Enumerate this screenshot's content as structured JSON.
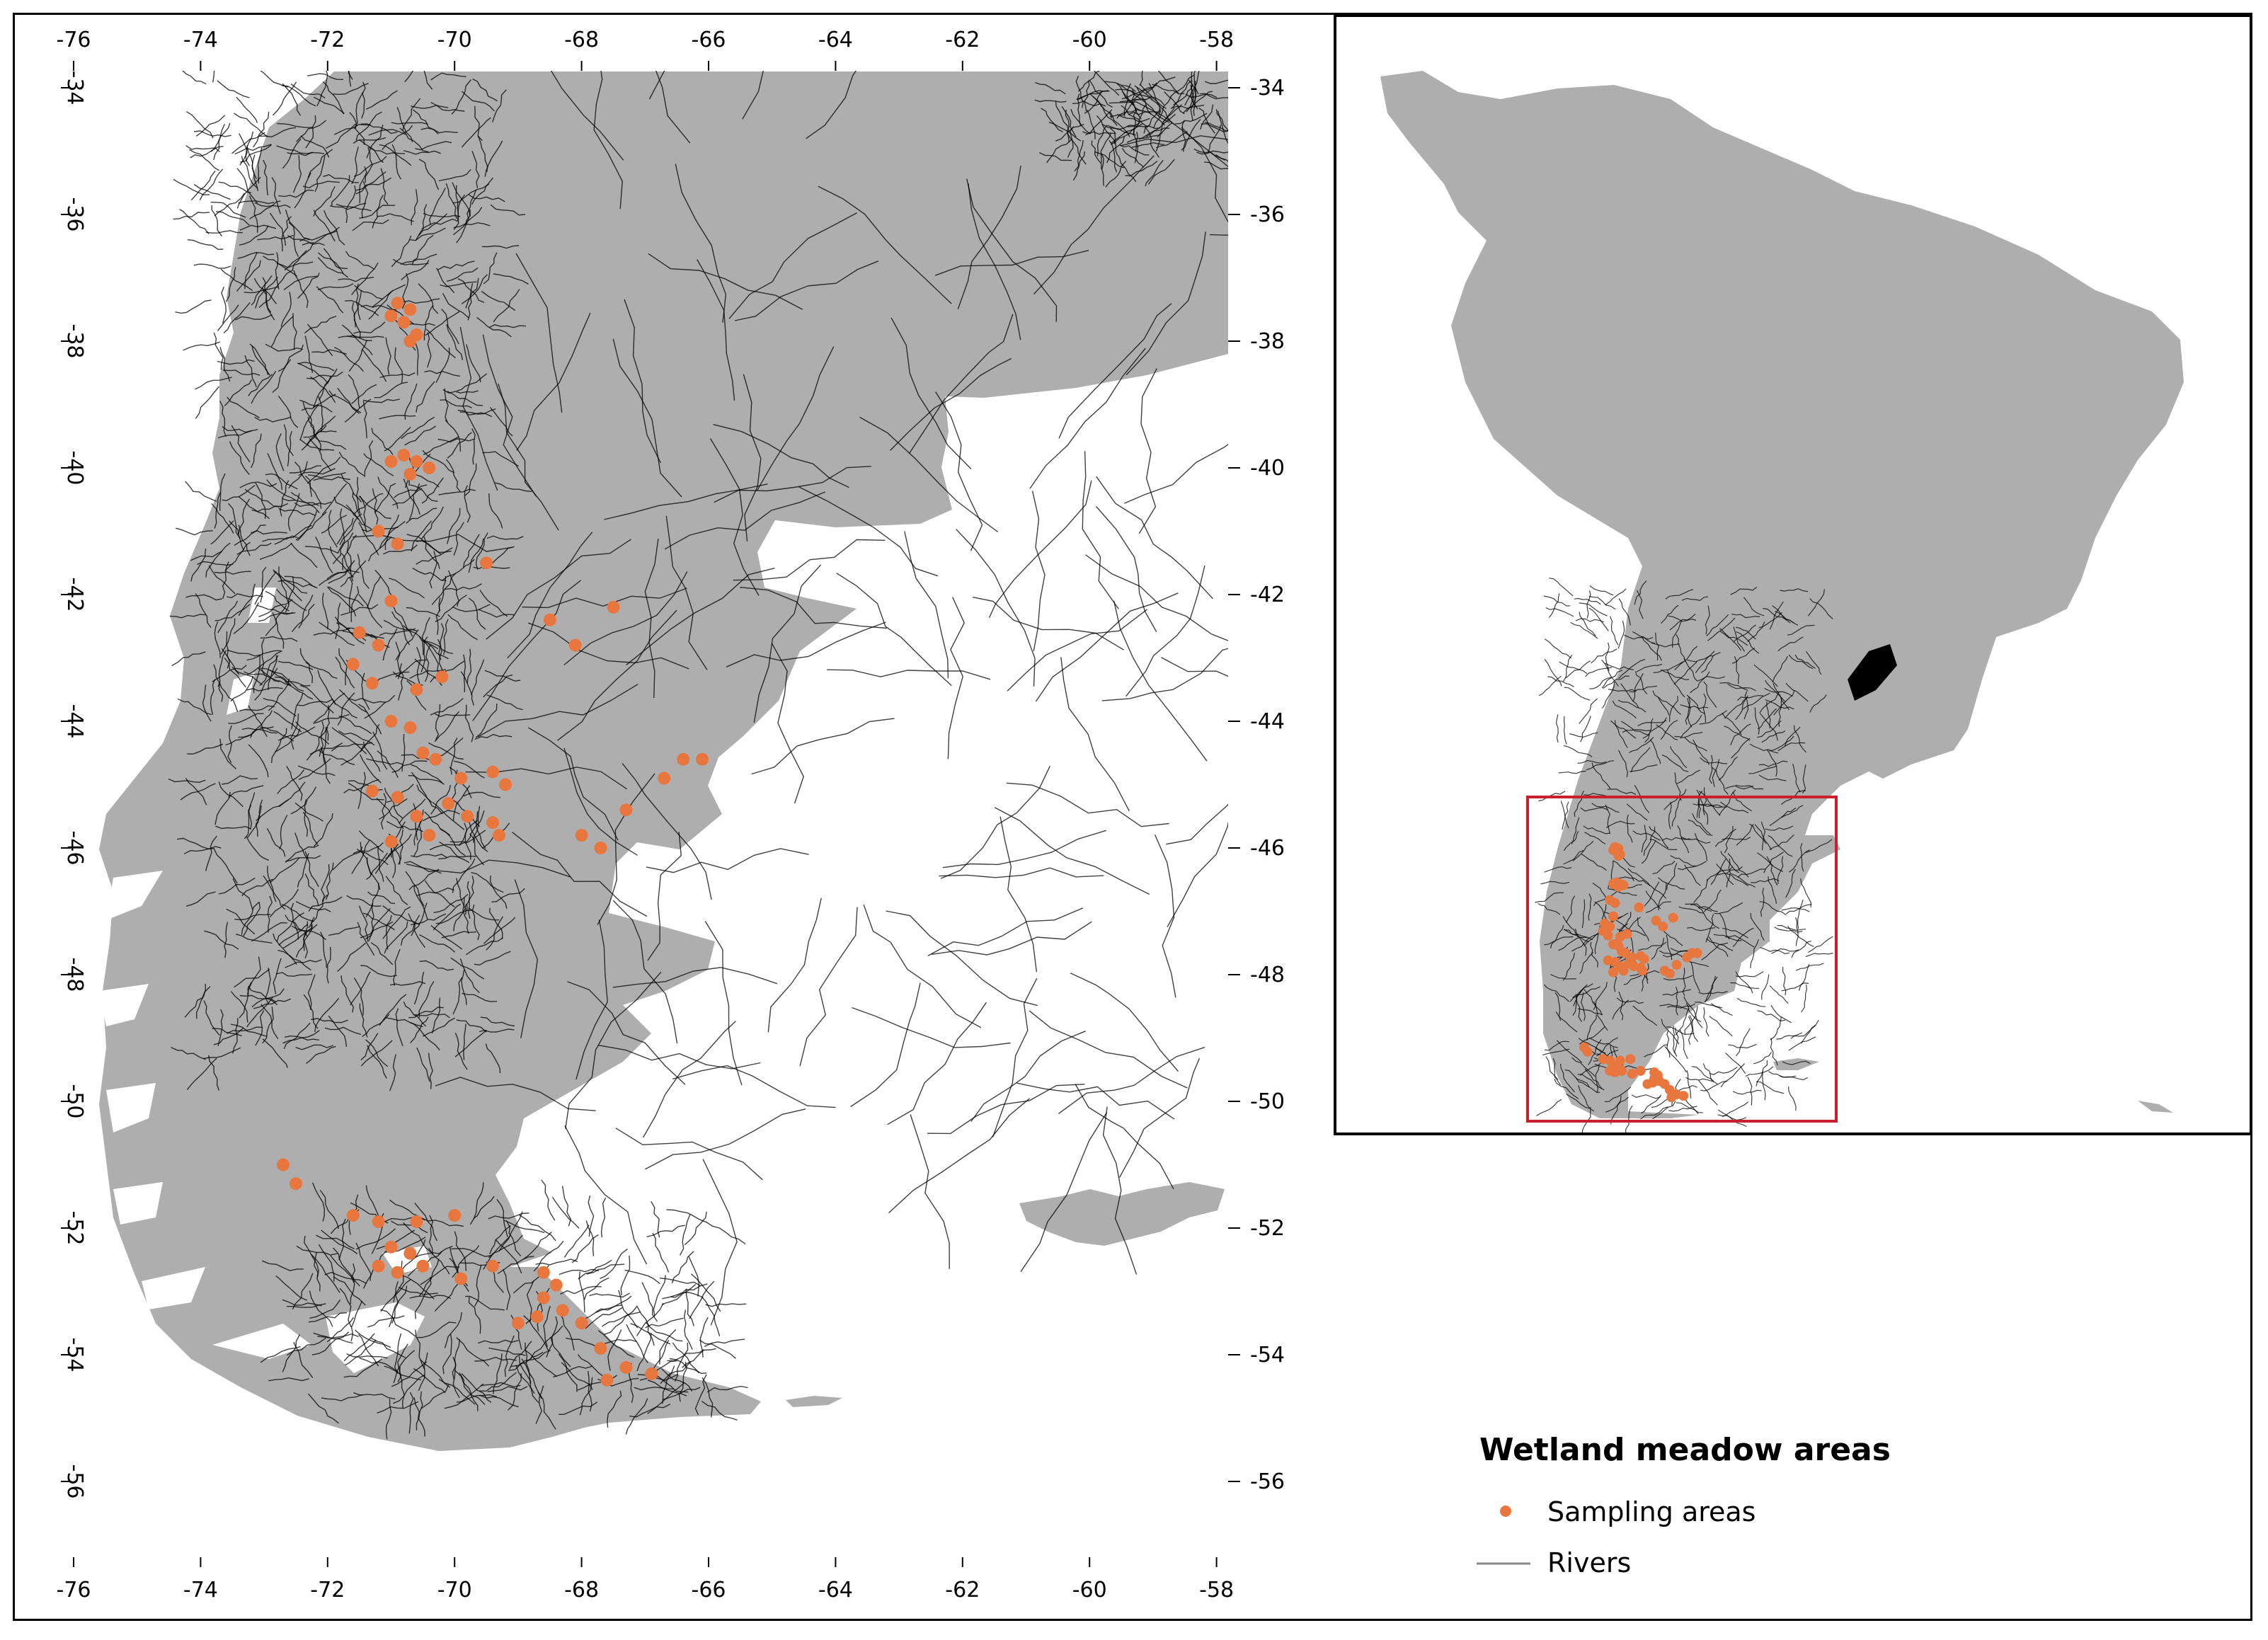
{
  "map": {
    "longitude_ticks": [
      "-76",
      "-74",
      "-72",
      "-70",
      "-68",
      "-66",
      "-64",
      "-62",
      "-60",
      "-58"
    ],
    "latitude_ticks": [
      "-34",
      "-36",
      "-38",
      "-40",
      "-42",
      "-44",
      "-46",
      "-48",
      "-50",
      "-52",
      "-54",
      "-56"
    ],
    "extent": {
      "lon": [
        -76,
        -58
      ],
      "lat": [
        -56,
        -34
      ]
    },
    "land_color": "#aeaeae",
    "river_color": "#000000",
    "sample_color": "#e8773f",
    "inset_box_color": "#cc1f2e"
  },
  "legend": {
    "title": "Wetland meadow areas",
    "sampling_label": "Sampling areas",
    "rivers_label": "Rivers"
  },
  "sampling_points": [
    [
      -70.9,
      -37.4
    ],
    [
      -70.7,
      -37.5
    ],
    [
      -70.8,
      -37.7
    ],
    [
      -70.6,
      -37.9
    ],
    [
      -70.7,
      -38.0
    ],
    [
      -71.0,
      -37.6
    ],
    [
      -70.8,
      -39.8
    ],
    [
      -70.6,
      -39.9
    ],
    [
      -70.4,
      -40.0
    ],
    [
      -71.0,
      -39.9
    ],
    [
      -70.7,
      -40.1
    ],
    [
      -71.2,
      -41.0
    ],
    [
      -70.9,
      -41.2
    ],
    [
      -69.5,
      -41.5
    ],
    [
      -71.0,
      -42.1
    ],
    [
      -67.5,
      -42.2
    ],
    [
      -68.5,
      -42.4
    ],
    [
      -68.1,
      -42.8
    ],
    [
      -71.5,
      -42.6
    ],
    [
      -71.2,
      -42.8
    ],
    [
      -71.6,
      -43.1
    ],
    [
      -71.3,
      -43.4
    ],
    [
      -70.6,
      -43.5
    ],
    [
      -70.2,
      -43.3
    ],
    [
      -71.0,
      -44.0
    ],
    [
      -70.7,
      -44.1
    ],
    [
      -70.5,
      -44.5
    ],
    [
      -70.3,
      -44.6
    ],
    [
      -69.9,
      -44.9
    ],
    [
      -69.4,
      -44.8
    ],
    [
      -69.2,
      -45.0
    ],
    [
      -71.3,
      -45.1
    ],
    [
      -70.9,
      -45.2
    ],
    [
      -70.6,
      -45.5
    ],
    [
      -70.1,
      -45.3
    ],
    [
      -69.8,
      -45.5
    ],
    [
      -69.4,
      -45.6
    ],
    [
      -69.3,
      -45.8
    ],
    [
      -70.4,
      -45.8
    ],
    [
      -71.0,
      -45.9
    ],
    [
      -66.4,
      -44.6
    ],
    [
      -66.1,
      -44.6
    ],
    [
      -66.7,
      -44.9
    ],
    [
      -67.3,
      -45.4
    ],
    [
      -68.0,
      -45.8
    ],
    [
      -67.7,
      -46.0
    ],
    [
      -72.7,
      -51.0
    ],
    [
      -72.5,
      -51.3
    ],
    [
      -71.6,
      -51.8
    ],
    [
      -71.2,
      -51.9
    ],
    [
      -70.6,
      -51.9
    ],
    [
      -70.0,
      -51.8
    ],
    [
      -71.0,
      -52.3
    ],
    [
      -70.7,
      -52.4
    ],
    [
      -71.2,
      -52.6
    ],
    [
      -70.9,
      -52.7
    ],
    [
      -70.5,
      -52.6
    ],
    [
      -69.9,
      -52.8
    ],
    [
      -69.4,
      -52.6
    ],
    [
      -68.6,
      -52.7
    ],
    [
      -68.4,
      -52.9
    ],
    [
      -68.6,
      -53.1
    ],
    [
      -68.3,
      -53.3
    ],
    [
      -68.0,
      -53.5
    ],
    [
      -68.7,
      -53.4
    ],
    [
      -69.0,
      -53.5
    ],
    [
      -67.7,
      -53.9
    ],
    [
      -67.3,
      -54.2
    ],
    [
      -66.9,
      -54.3
    ],
    [
      -67.6,
      -54.4
    ]
  ]
}
